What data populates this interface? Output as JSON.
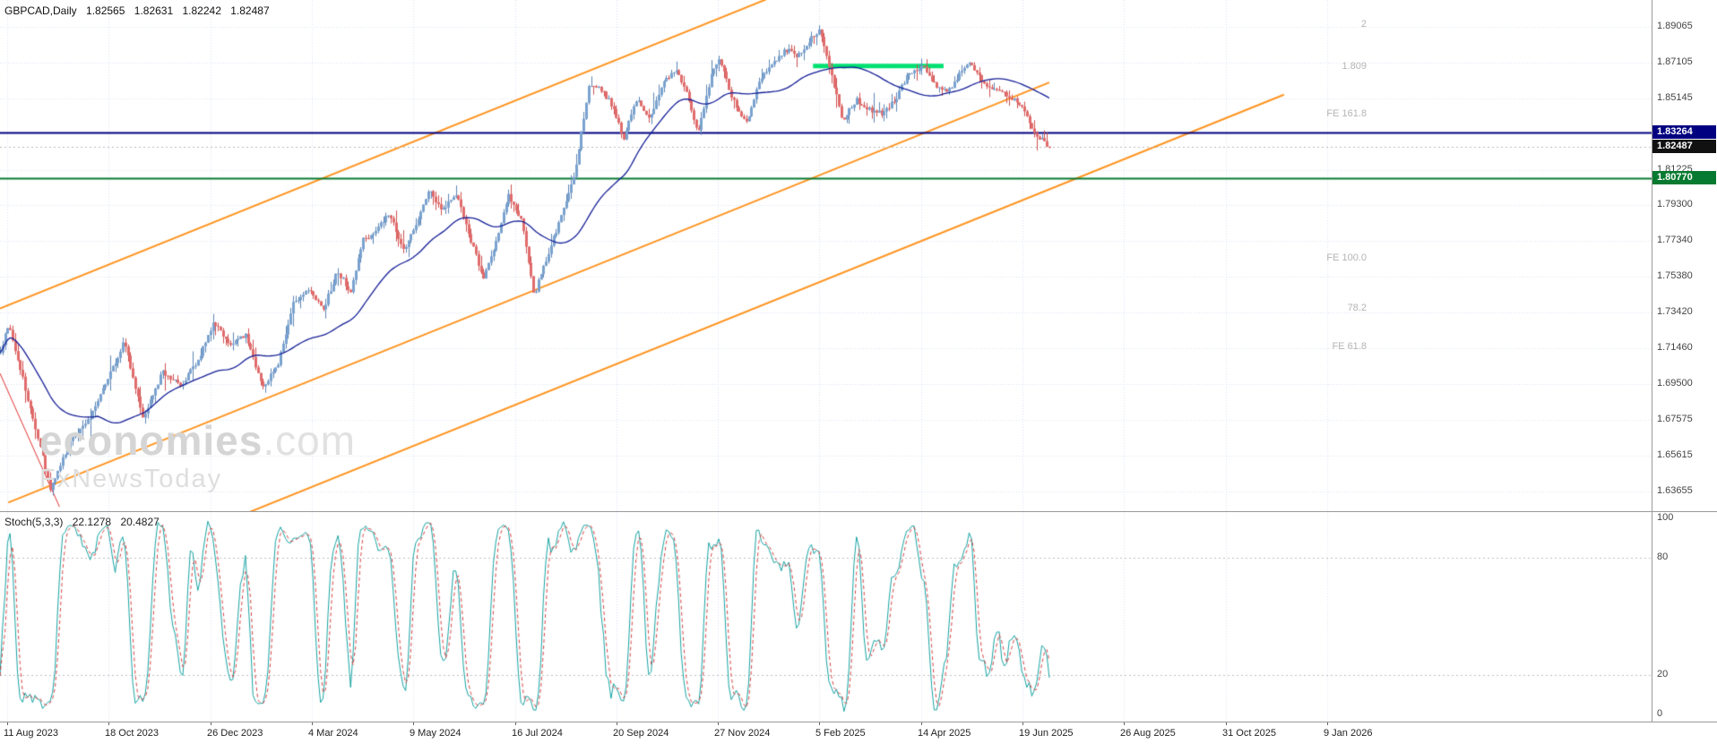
{
  "header": {
    "symbol_period": "GBPCAD,Daily",
    "open": "1.82565",
    "high": "1.82631",
    "low": "1.82242",
    "close": "1.82487"
  },
  "watermark": {
    "brand_bold": "economies",
    "brand_suffix": ".com",
    "tagline": "FxNewsToday"
  },
  "price_axis": {
    "tick_labels": [
      "1.89065",
      "1.87105",
      "1.85145",
      "1.81225",
      "1.79300",
      "1.77340",
      "1.75380",
      "1.73420",
      "1.71460",
      "1.69500",
      "1.67575",
      "1.65615",
      "1.63655"
    ],
    "badges": [
      {
        "name": "resistance-price-badge",
        "label": "1.83264",
        "price": 1.83264,
        "bg": "#000080"
      },
      {
        "name": "current-price-badge",
        "label": "1.82487",
        "price": 1.82487,
        "bg": "#111111"
      },
      {
        "name": "support-price-badge",
        "label": "1.80770",
        "price": 1.8077,
        "bg": "#067a30"
      }
    ]
  },
  "stoch_axis": {
    "labels": [
      {
        "text": "100",
        "value": 100
      },
      {
        "text": "80",
        "value": 80
      },
      {
        "text": "20",
        "value": 20
      },
      {
        "text": "0",
        "value": 0
      }
    ]
  },
  "time_axis": {
    "labels": [
      "11 Aug 2023",
      "18 Oct 2023",
      "26 Dec 2023",
      "4 Mar 2024",
      "9 May 2024",
      "16 Jul 2024",
      "20 Sep 2024",
      "27 Nov 2024",
      "5 Feb 2025",
      "14 Apr 2025",
      "19 Jun 2025",
      "26 Aug 2025",
      "31 Oct 2025",
      "9 Jan 2026"
    ]
  },
  "stoch_panel": {
    "indicator_label": "Stoch(5,3,3)",
    "k_value": "22.1278",
    "d_value": "20.4827"
  },
  "chart_data": {
    "type": "candlestick",
    "title": "GBPCAD,Daily",
    "symbol": "GBPCAD",
    "timeframe": "Daily",
    "last_ohlc": {
      "open": 1.82565,
      "high": 1.82631,
      "low": 1.82242,
      "close": 1.82487
    },
    "y_axis": {
      "top_price": 1.9054,
      "bottom_price": 1.6256,
      "ticks": [
        1.89065,
        1.87105,
        1.85145,
        1.81225,
        1.793,
        1.7734,
        1.7538,
        1.7342,
        1.7146,
        1.695,
        1.67575,
        1.65615,
        1.63655
      ]
    },
    "x_axis": {
      "labels": [
        "11 Aug 2023",
        "18 Oct 2023",
        "26 Dec 2023",
        "4 Mar 2024",
        "9 May 2024",
        "16 Jul 2024",
        "20 Sep 2024",
        "27 Nov 2024",
        "5 Feb 2025",
        "14 Apr 2025",
        "19 Jun 2025",
        "26 Aug 2025",
        "31 Oct 2025",
        "9 Jan 2026"
      ]
    },
    "series_end_frac": 0.635,
    "num_candles": 420,
    "price_path": [
      [
        0,
        1.712
      ],
      [
        0.008,
        1.729
      ],
      [
        0.025,
        1.69
      ],
      [
        0.048,
        1.638
      ],
      [
        0.067,
        1.664
      ],
      [
        0.084,
        1.675
      ],
      [
        0.101,
        1.697
      ],
      [
        0.118,
        1.718
      ],
      [
        0.136,
        1.677
      ],
      [
        0.155,
        1.702
      ],
      [
        0.172,
        1.694
      ],
      [
        0.189,
        1.709
      ],
      [
        0.204,
        1.729
      ],
      [
        0.22,
        1.716
      ],
      [
        0.234,
        1.723
      ],
      [
        0.25,
        1.692
      ],
      [
        0.265,
        1.707
      ],
      [
        0.279,
        1.739
      ],
      [
        0.294,
        1.748
      ],
      [
        0.308,
        1.736
      ],
      [
        0.321,
        1.757
      ],
      [
        0.334,
        1.746
      ],
      [
        0.346,
        1.774
      ],
      [
        0.36,
        1.78
      ],
      [
        0.371,
        1.789
      ],
      [
        0.384,
        1.768
      ],
      [
        0.397,
        1.784
      ],
      [
        0.409,
        1.801
      ],
      [
        0.422,
        1.79
      ],
      [
        0.434,
        1.8
      ],
      [
        0.447,
        1.777
      ],
      [
        0.46,
        1.753
      ],
      [
        0.472,
        1.772
      ],
      [
        0.484,
        1.799
      ],
      [
        0.497,
        1.784
      ],
      [
        0.509,
        1.744
      ],
      [
        0.523,
        1.768
      ],
      [
        0.535,
        1.787
      ],
      [
        0.548,
        1.812
      ],
      [
        0.561,
        1.858
      ],
      [
        0.573,
        1.856
      ],
      [
        0.585,
        1.846
      ],
      [
        0.594,
        1.83
      ],
      [
        0.607,
        1.851
      ],
      [
        0.619,
        1.841
      ],
      [
        0.632,
        1.86
      ],
      [
        0.644,
        1.868
      ],
      [
        0.656,
        1.851
      ],
      [
        0.665,
        1.831
      ],
      [
        0.677,
        1.863
      ],
      [
        0.686,
        1.873
      ],
      [
        0.698,
        1.851
      ],
      [
        0.711,
        1.838
      ],
      [
        0.723,
        1.86
      ],
      [
        0.736,
        1.871
      ],
      [
        0.749,
        1.878
      ],
      [
        0.761,
        1.875
      ],
      [
        0.774,
        1.885
      ],
      [
        0.781,
        1.89
      ],
      [
        0.795,
        1.857
      ],
      [
        0.803,
        1.84
      ],
      [
        0.816,
        1.851
      ],
      [
        0.829,
        1.845
      ],
      [
        0.841,
        1.843
      ],
      [
        0.854,
        1.852
      ],
      [
        0.866,
        1.866
      ],
      [
        0.879,
        1.869
      ],
      [
        0.892,
        1.858
      ],
      [
        0.904,
        1.856
      ],
      [
        0.917,
        1.867
      ],
      [
        0.925,
        1.871
      ],
      [
        0.938,
        1.86
      ],
      [
        0.95,
        1.856
      ],
      [
        0.963,
        1.852
      ],
      [
        0.976,
        1.845
      ],
      [
        0.986,
        1.833
      ],
      [
        1,
        1.8249
      ]
    ],
    "colors": {
      "up": "#7aa2cf",
      "up_wick": "#5c85b4",
      "down": "#e06c6c",
      "down_wick": "#cf4f4f",
      "ma": "#141e96",
      "grid": "#d9e2f3",
      "orange": "#ff9420",
      "red_line": "#e03030",
      "hline_navy": "#000080",
      "hline_green": "#067a30",
      "zone_green": "#00e072",
      "bid_line": "#b8b8b8"
    },
    "moving_average": {
      "type": "SMA",
      "period": 40
    },
    "horizontal_lines": [
      {
        "name": "resistance-line",
        "price": 1.83264
      },
      {
        "name": "support-line",
        "price": 1.8077
      }
    ],
    "bid_price": 1.82487,
    "resistance_zone": {
      "f1": 0.492,
      "f2": 0.571,
      "price": 1.8693
    },
    "channel_lines": [
      {
        "p0": 1.7365,
        "slope": 0.365,
        "f1": 0,
        "f2": 0.47
      },
      {
        "p0": 1.6285,
        "slope": 0.365,
        "f1": 0.005,
        "f2": 0.635
      },
      {
        "p0": 1.57,
        "slope": 0.365,
        "f1": 0.09,
        "f2": 0.777
      }
    ],
    "red_trendline": {
      "f1": 0,
      "p1": 1.701,
      "f2": 0.036,
      "p2": 1.628
    },
    "fib_labels": [
      {
        "text": "2",
        "price": 1.8918
      },
      {
        "text": "1.809",
        "price": 1.8686
      },
      {
        "text": "FE 161.8",
        "price": 1.8427
      },
      {
        "text": "FE 100.0",
        "price": 1.7638
      },
      {
        "text": "78.2",
        "price": 1.7364
      },
      {
        "text": "FE 61.8",
        "price": 1.7153
      }
    ],
    "fib_label_right_frac": 0.827,
    "stochastic": {
      "type": "stochastic",
      "k_period": 5,
      "slowing": 3,
      "d_period": 3,
      "levels": [
        80,
        20
      ],
      "scale": [
        0,
        100
      ],
      "k_color": "#17a2a2",
      "d_color": "#d64545",
      "last_k": 22.1278,
      "last_d": 20.4827
    }
  }
}
